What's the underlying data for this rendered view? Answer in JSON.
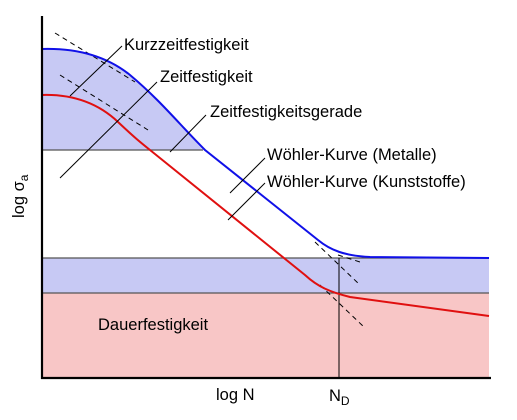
{
  "labels": {
    "kurzzeit": "Kurzzeitfestigkeit",
    "zeit": "Zeitfestigkeit",
    "gerade": "Zeitfestigkeitsgerade",
    "metalle": "Wöhler-Kurve (Metalle)",
    "kunststoffe": "Wöhler-Kurve (Kunststoffe)",
    "dauer": "Dauerfestigkeit"
  },
  "axes": {
    "y_label": "log σ",
    "y_sub": "a",
    "x_label": "log N",
    "nd_main": "N",
    "nd_sub": "D"
  },
  "colors": {
    "metal_curve": "#1010e8",
    "plastic_curve": "#e01010",
    "blue_fill": "#c7c9f4",
    "red_fill": "#f8c6c6",
    "gray_line": "#555555"
  }
}
